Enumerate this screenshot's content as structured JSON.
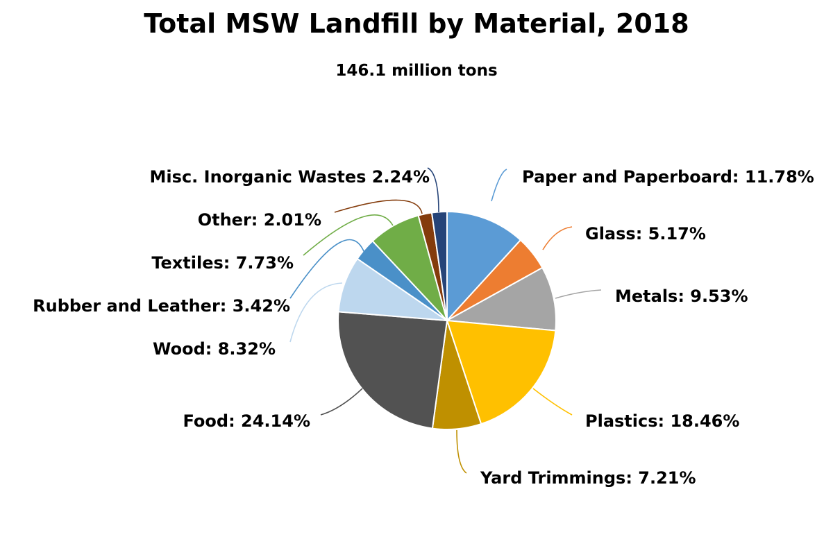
{
  "chart_data": {
    "type": "pie",
    "title": "Total MSW Landfill by Material, 2018",
    "subtitle": "146.1 million tons",
    "series": [
      {
        "name": "Paper and Paperboard",
        "value": 11.78,
        "label": "Paper and Paperboard: 11.78%",
        "color": "#5b9bd5"
      },
      {
        "name": "Glass",
        "value": 5.17,
        "label": "Glass: 5.17%",
        "color": "#ed7d31"
      },
      {
        "name": "Metals",
        "value": 9.53,
        "label": "Metals: 9.53%",
        "color": "#a5a5a5"
      },
      {
        "name": "Plastics",
        "value": 18.46,
        "label": "Plastics: 18.46%",
        "color": "#ffc000"
      },
      {
        "name": "Yard Trimmings",
        "value": 7.21,
        "label": "Yard Trimmings: 7.21%",
        "color": "#bf9000"
      },
      {
        "name": "Food",
        "value": 24.14,
        "label": "Food: 24.14%",
        "color": "#525252"
      },
      {
        "name": "Wood",
        "value": 8.32,
        "label": "Wood: 8.32%",
        "color": "#bdd7ee"
      },
      {
        "name": "Rubber and Leather",
        "value": 3.42,
        "label": "Rubber and Leather: 3.42%",
        "color": "#4a90c8"
      },
      {
        "name": "Textiles",
        "value": 7.73,
        "label": "Textiles: 7.73%",
        "color": "#70ad47"
      },
      {
        "name": "Other",
        "value": 2.01,
        "label": "Other: 2.01%",
        "color": "#843c0c"
      },
      {
        "name": "Misc. Inorganic Wastes",
        "value": 2.24,
        "label": "Misc. Inorganic Wastes 2.24%",
        "color": "#264478"
      }
    ]
  }
}
